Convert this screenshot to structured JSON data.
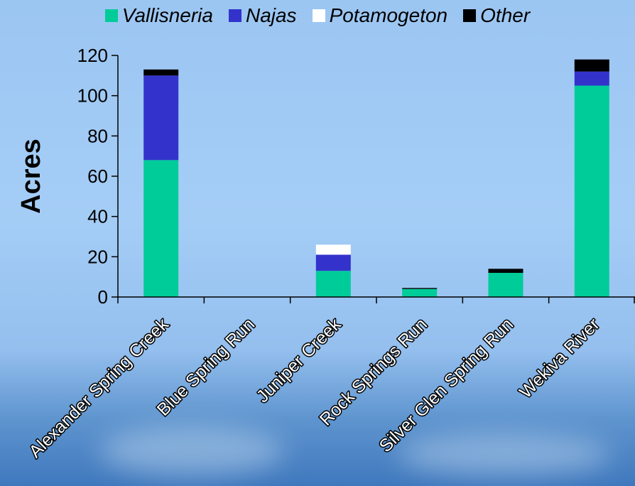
{
  "chart_data": {
    "type": "bar",
    "stacked": true,
    "title": "",
    "xlabel": "",
    "ylabel": "Acres",
    "ylim": [
      0,
      120
    ],
    "yticks": [
      0,
      20,
      40,
      60,
      80,
      100,
      120
    ],
    "legend_position": "top",
    "categories": [
      "Alexander Spring Creek",
      "Blue Spring Run",
      "Juniper Creek",
      "Rock Springs Run",
      "Silver Glen Spring Run",
      "Wekiva River"
    ],
    "series": [
      {
        "name": "Vallisneria",
        "color": "#00cc99",
        "values": [
          68,
          0,
          13,
          4,
          12,
          105
        ]
      },
      {
        "name": "Najas",
        "color": "#3333cc",
        "values": [
          42,
          0,
          8,
          0,
          0,
          7
        ]
      },
      {
        "name": "Potamogeton",
        "color": "#ffffff",
        "values": [
          0,
          0,
          5,
          0,
          0,
          0
        ]
      },
      {
        "name": "Other",
        "color": "#000000",
        "values": [
          3,
          0,
          0,
          0.5,
          2,
          6
        ]
      }
    ]
  }
}
